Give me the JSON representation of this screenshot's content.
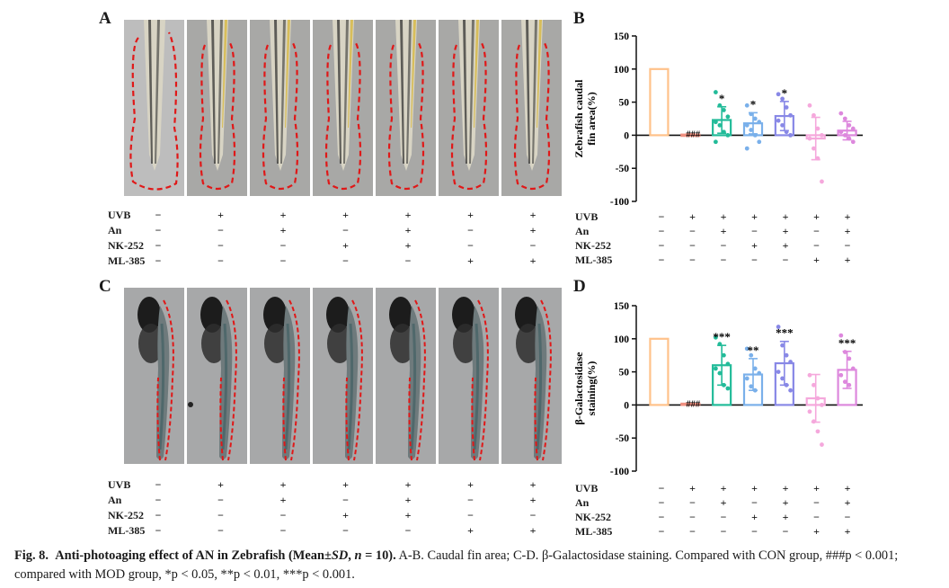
{
  "panels": {
    "A": "A",
    "B": "B",
    "C": "C",
    "D": "D"
  },
  "treatment_labels": [
    "UVB",
    "An",
    "NK-252",
    "ML-385"
  ],
  "signs": [
    [
      "−",
      "+",
      "+",
      "+",
      "+",
      "+",
      "+"
    ],
    [
      "−",
      "−",
      "+",
      "−",
      "+",
      "−",
      "+"
    ],
    [
      "−",
      "−",
      "−",
      "+",
      "+",
      "−",
      "−"
    ],
    [
      "−",
      "−",
      "−",
      "−",
      "−",
      "+",
      "+"
    ]
  ],
  "chart_data": [
    {
      "type": "bar",
      "panel": "B",
      "ylabel": "Zebrafish caudal fin area(%)",
      "ylabel_lines": [
        "Zebrafish caudal",
        "fin area(%)"
      ],
      "ylim": [
        -100,
        150
      ],
      "yticks": [
        150,
        100,
        50,
        0,
        -50,
        -100
      ],
      "groups": 7,
      "values": [
        100,
        1,
        23,
        18,
        29,
        -5,
        7
      ],
      "sd": [
        0,
        1,
        20,
        16,
        22,
        32,
        14
      ],
      "colors": [
        "#ffc28a",
        "#f09080",
        "#22bb99",
        "#7ab0ea",
        "#8888e6",
        "#f5a8dc",
        "#dd88dd"
      ],
      "points": [
        [],
        [],
        [
          65,
          45,
          38,
          28,
          20,
          15,
          5,
          0,
          -10
        ],
        [
          45,
          32,
          25,
          20,
          15,
          8,
          0,
          -10,
          -20
        ],
        [
          62,
          55,
          42,
          30,
          22,
          15,
          5,
          0
        ],
        [
          45,
          30,
          10,
          0,
          -5,
          -20,
          -35,
          -70
        ],
        [
          33,
          25,
          15,
          10,
          5,
          0,
          -5,
          -10
        ]
      ],
      "annotations": [
        "",
        "###",
        "*",
        "*",
        "*",
        "",
        ""
      ]
    },
    {
      "type": "bar",
      "panel": "D",
      "ylabel": "β-Galactosidase staining(%)",
      "ylabel_lines": [
        "β-Galactosidase",
        "staining(%)"
      ],
      "ylim": [
        -100,
        150
      ],
      "yticks": [
        150,
        100,
        50,
        0,
        -50,
        -100
      ],
      "groups": 7,
      "values": [
        100,
        2,
        60,
        46,
        63,
        10,
        53
      ],
      "sd": [
        0,
        1,
        30,
        24,
        33,
        36,
        28
      ],
      "colors": [
        "#ffc28a",
        "#f09080",
        "#22bb99",
        "#7ab0ea",
        "#8888e6",
        "#f5a8dc",
        "#dd88dd"
      ],
      "points": [
        [],
        [],
        [
          102,
          92,
          75,
          62,
          55,
          48,
          30,
          25
        ],
        [
          85,
          75,
          55,
          48,
          40,
          28,
          22
        ],
        [
          118,
          90,
          75,
          65,
          50,
          40,
          30,
          22
        ],
        [
          45,
          30,
          10,
          0,
          -10,
          -25,
          -40,
          -60
        ],
        [
          105,
          80,
          70,
          55,
          45,
          35,
          30
        ]
      ],
      "annotations": [
        "",
        "###",
        "***",
        "**",
        "***",
        "",
        "***"
      ]
    }
  ],
  "caption": {
    "label": "Fig. 8.",
    "title": "Anti-photoaging effect of AN in Zebrafish (Mean±",
    "title_sd": "SD",
    "title_n": "n",
    "title_rest": " = 10).",
    "text": " A-B. Caudal fin area; C-D. β-Galactosidase staining. Compared with CON group, ###p < 0.001; compared with MOD group, *p < 0.05, **p < 0.01, ***p < 0.001."
  }
}
